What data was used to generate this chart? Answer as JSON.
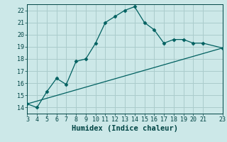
{
  "title": "",
  "xlabel": "Humidex (Indice chaleur)",
  "ylabel": "",
  "bg_color": "#cce8e8",
  "grid_color": "#aacccc",
  "line_color": "#006060",
  "marker": "D",
  "marker_size": 2.5,
  "xlim": [
    3,
    23
  ],
  "ylim": [
    13.5,
    22.5
  ],
  "xticks": [
    3,
    4,
    5,
    6,
    7,
    8,
    9,
    10,
    11,
    12,
    13,
    14,
    15,
    16,
    17,
    18,
    19,
    20,
    21,
    23
  ],
  "yticks": [
    14,
    15,
    16,
    17,
    18,
    19,
    20,
    21,
    22
  ],
  "curve1_x": [
    3,
    4,
    5,
    6,
    7,
    8,
    9,
    10,
    11,
    12,
    13,
    14,
    15,
    16,
    17,
    18,
    19,
    20,
    21,
    23
  ],
  "curve1_y": [
    14.3,
    14.0,
    15.3,
    16.4,
    15.9,
    17.8,
    18.0,
    19.3,
    21.0,
    21.5,
    22.0,
    22.3,
    21.0,
    20.4,
    19.3,
    19.6,
    19.6,
    19.3,
    19.3,
    18.9
  ],
  "curve2_x": [
    3,
    23
  ],
  "curve2_y": [
    14.3,
    18.9
  ],
  "font_color": "#004444",
  "tick_fontsize": 6,
  "label_fontsize": 7.5
}
